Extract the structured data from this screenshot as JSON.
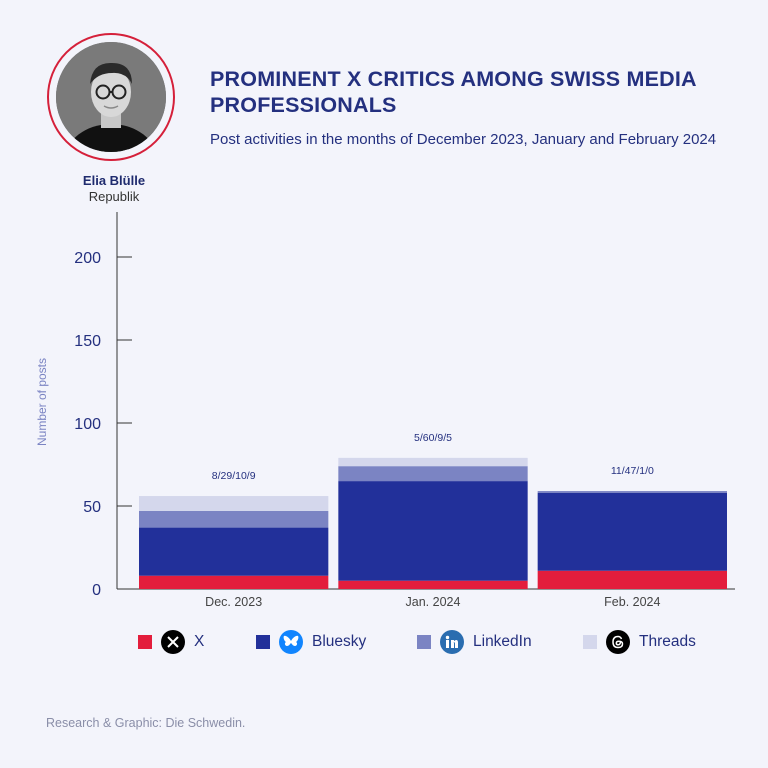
{
  "header": {
    "title": "PROMINENT X CRITICS AMONG SWISS MEDIA PROFESSIONALS",
    "subtitle": "Post activities in the months of December 2023, January and February 2024"
  },
  "person": {
    "name": "Elia Blülle",
    "organization": "Republik"
  },
  "footer": {
    "credit": "Research & Graphic: Die Schwedin."
  },
  "colors": {
    "x": "#e31d3c",
    "bluesky": "#22309a",
    "linkedin": "#7b84c3",
    "threads": "#d4d7ec",
    "title": "#24307f"
  },
  "legend": [
    {
      "label": "X",
      "icon": "x-logo-icon",
      "color": "#e31d3c"
    },
    {
      "label": "Bluesky",
      "icon": "bluesky-butterfly-icon",
      "color": "#22309a"
    },
    {
      "label": "LinkedIn",
      "icon": "linkedin-logo-icon",
      "color": "#7b84c3"
    },
    {
      "label": "Threads",
      "icon": "threads-logo-icon",
      "color": "#d4d7ec"
    }
  ],
  "chart_data": {
    "type": "bar",
    "stacked": true,
    "categories": [
      "Dec. 2023",
      "Jan. 2024",
      "Feb. 2024"
    ],
    "series": [
      {
        "name": "X",
        "values": [
          8,
          5,
          11
        ]
      },
      {
        "name": "Bluesky",
        "values": [
          29,
          60,
          47
        ]
      },
      {
        "name": "LinkedIn",
        "values": [
          10,
          9,
          1
        ]
      },
      {
        "name": "Threads",
        "values": [
          9,
          5,
          0
        ]
      }
    ],
    "bar_labels": [
      "8/29/10/9",
      "5/60/9/5",
      "11/47/1/0"
    ],
    "title": "PROMINENT X CRITICS AMONG SWISS MEDIA PROFESSIONALS",
    "xlabel": "",
    "ylabel": "Number of posts",
    "ylim": [
      0,
      220
    ],
    "yticks": [
      0,
      50,
      100,
      150,
      200
    ],
    "grid": false,
    "legend_position": "bottom"
  }
}
